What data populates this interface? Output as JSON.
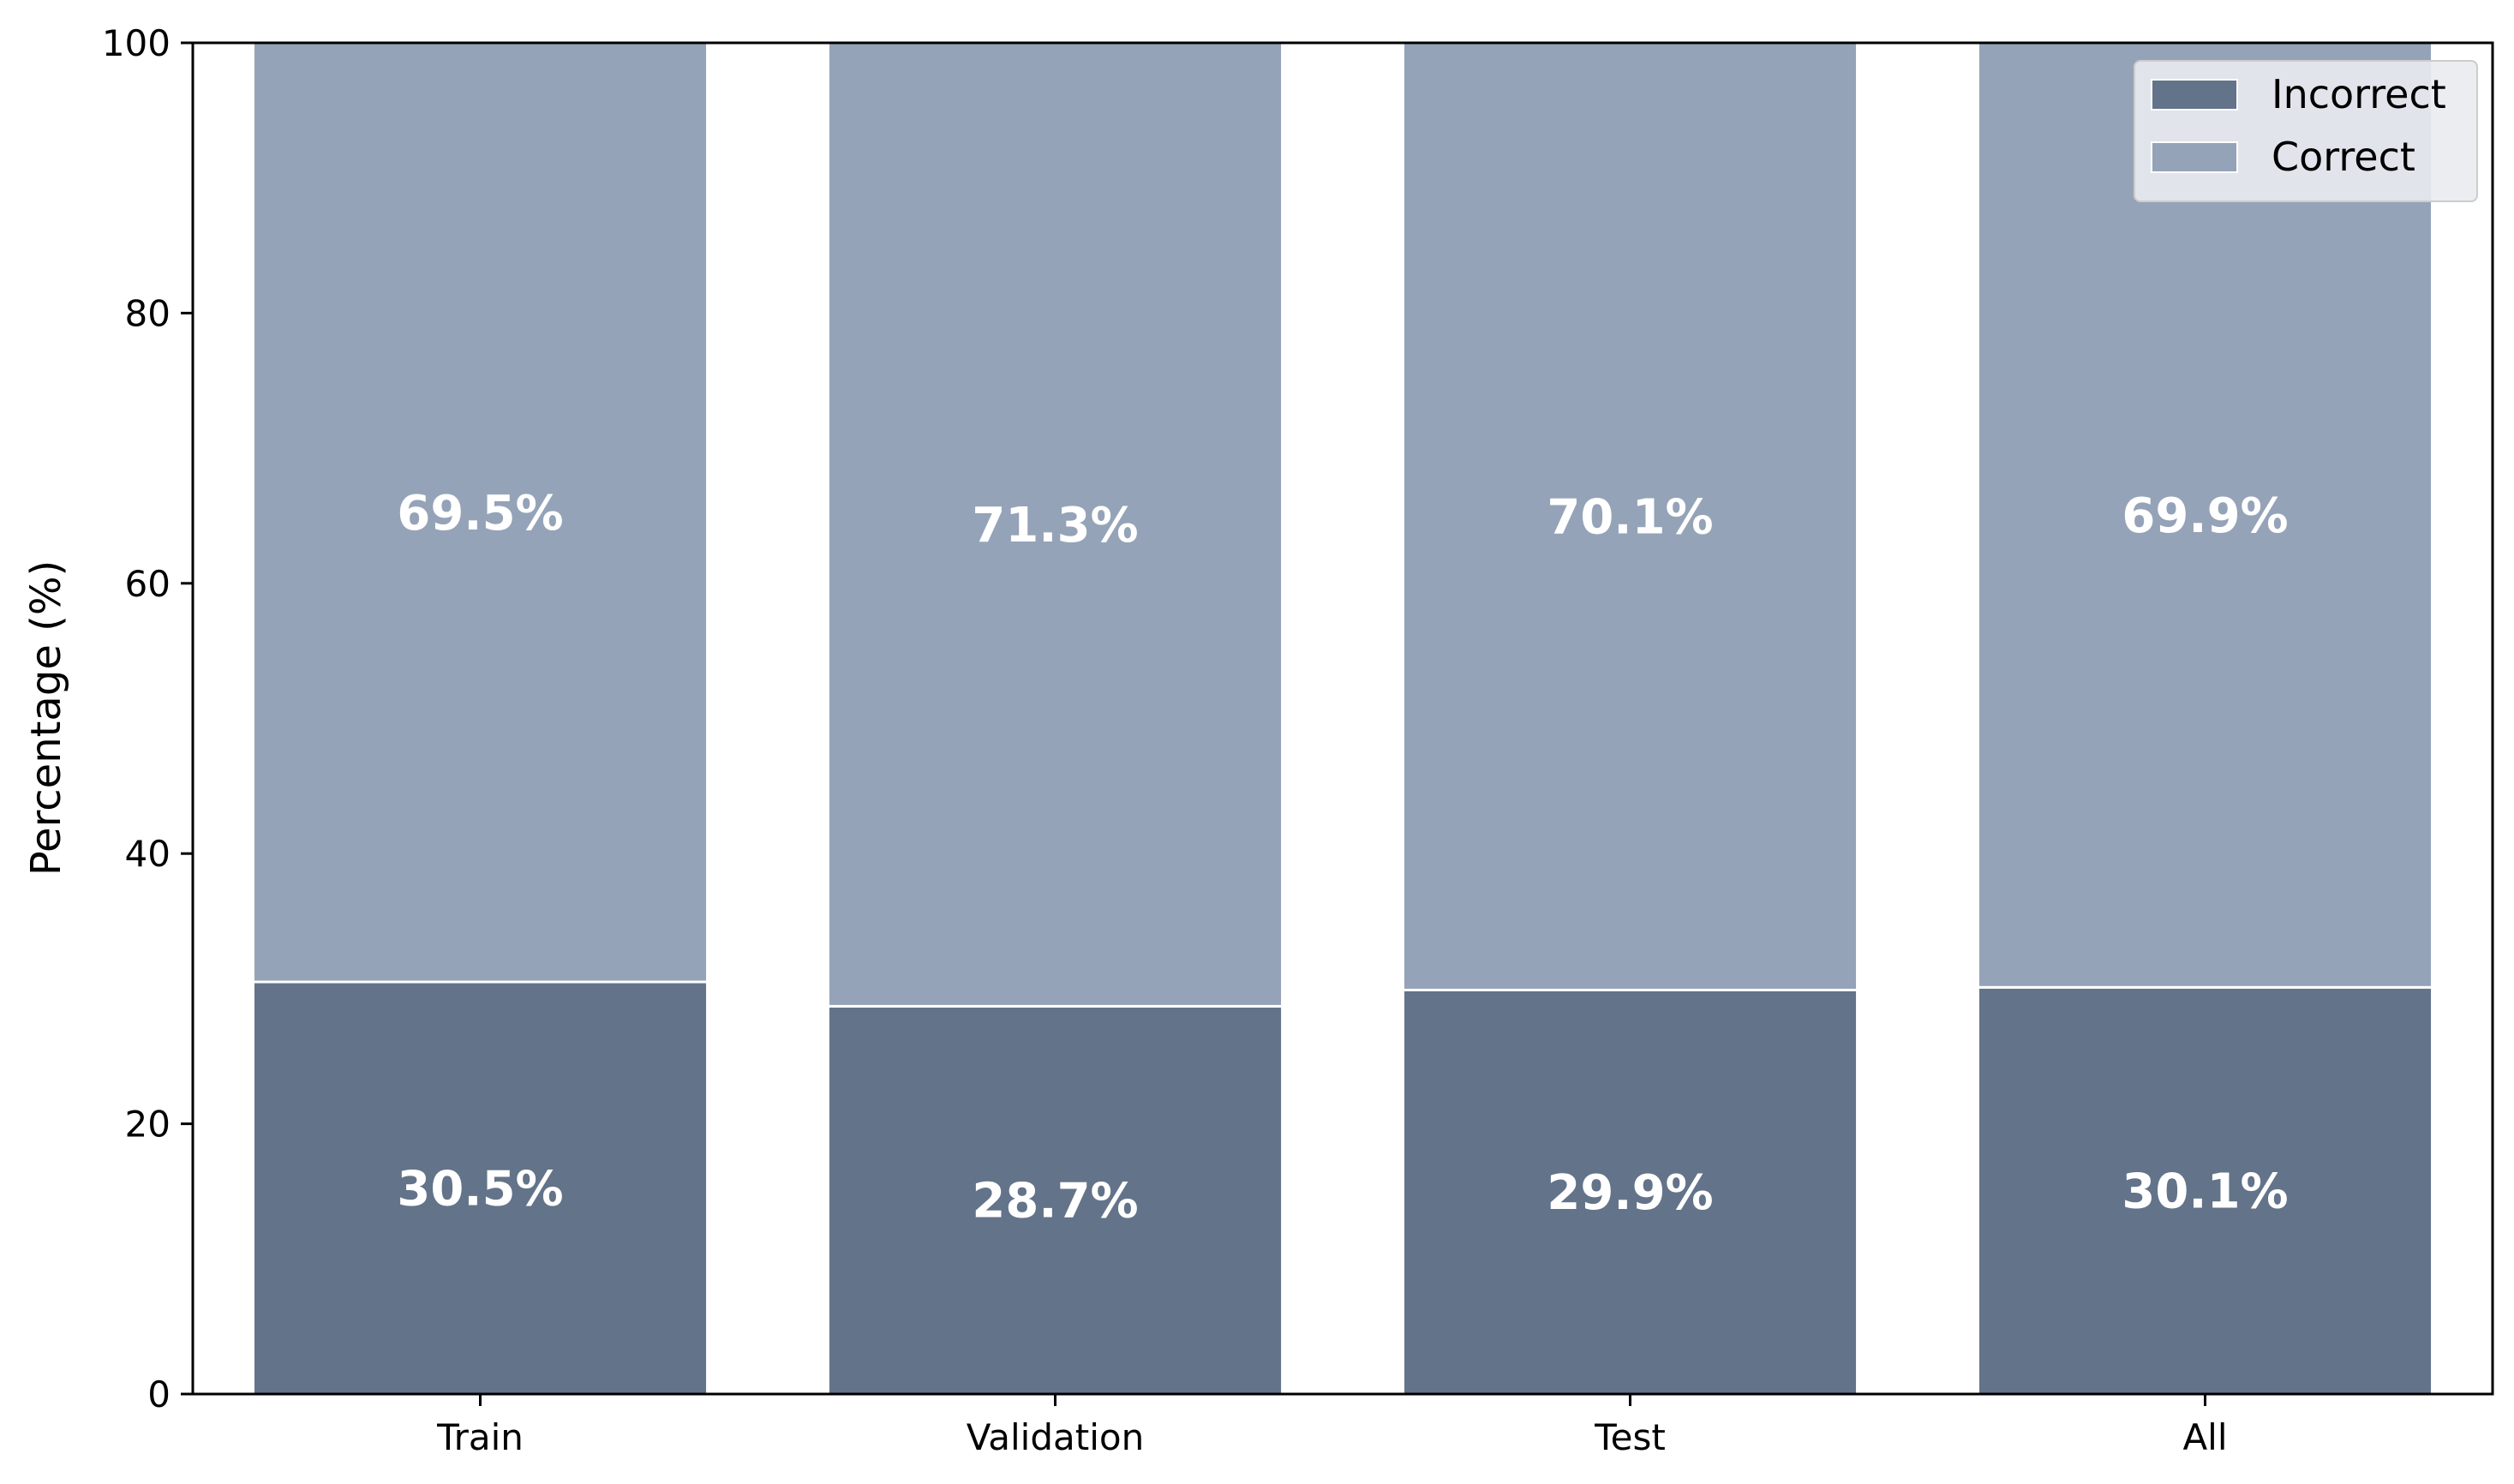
{
  "chart_data": {
    "type": "bar",
    "stacked": true,
    "categories": [
      "Train",
      "Validation",
      "Test",
      "All"
    ],
    "series": [
      {
        "name": "Incorrect",
        "values": [
          30.5,
          28.7,
          29.9,
          30.1
        ],
        "labels": [
          "30.5%",
          "28.7%",
          "29.9%",
          "30.1%"
        ],
        "color": "#637389"
      },
      {
        "name": "Correct",
        "values": [
          69.5,
          71.3,
          70.1,
          69.9
        ],
        "labels": [
          "69.5%",
          "71.3%",
          "70.1%",
          "69.9%"
        ],
        "color": "#95a3b8"
      }
    ],
    "title": "",
    "xlabel": "",
    "ylabel": "Percentage (%)",
    "ylim": [
      0,
      100
    ],
    "yticks": [
      0,
      20,
      40,
      60,
      80,
      100
    ],
    "grid": false,
    "legend": "top-right",
    "legend_background": "#e9ebf0"
  }
}
